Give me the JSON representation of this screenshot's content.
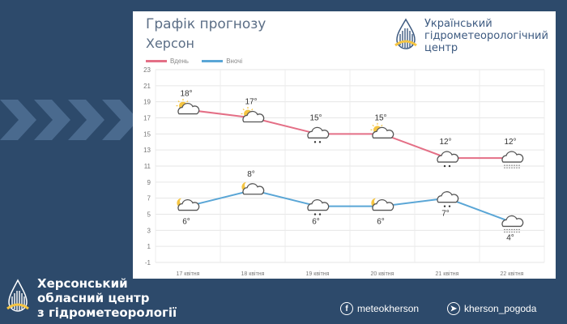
{
  "card": {
    "title": "Графік прогнозу",
    "subtitle": "Херсон",
    "org_lines": [
      "Український",
      "гідрометеорологічний",
      "центр"
    ]
  },
  "footer": {
    "org_lines": [
      "Херсонський",
      "обласний центр",
      "з гідрометеорології"
    ],
    "facebook_handle": "meteokherson",
    "telegram_handle": "kherson_pogoda"
  },
  "colors": {
    "background": "#2d4a6b",
    "day_series": "#e46f86",
    "night_series": "#5aa6d6",
    "sun": "#f5c542",
    "cloud": "#555555"
  },
  "chart_data": {
    "type": "line",
    "categories": [
      "17 квітня",
      "18 квітня",
      "19 квітня",
      "20 квітня",
      "21 квітня",
      "22 квітня"
    ],
    "series": [
      {
        "name": "Вдень",
        "values": [
          18,
          17,
          15,
          15,
          12,
          12
        ],
        "labels": [
          "18°",
          "17°",
          "15°",
          "15°",
          "12°",
          "12°"
        ],
        "icons": [
          "sun-cloud",
          "sun-cloud",
          "cloud-rain",
          "sun-cloud",
          "cloud-rain",
          "cloud-fog"
        ]
      },
      {
        "name": "Вночі",
        "values": [
          6,
          8,
          6,
          6,
          7,
          4
        ],
        "labels": [
          "6°",
          "8°",
          "6°",
          "6°",
          "7°",
          "4°"
        ],
        "icons": [
          "moon-cloud",
          "moon-cloud",
          "cloud-rain",
          "moon-cloud",
          "cloud-rain",
          "cloud-fog"
        ]
      }
    ],
    "yticks": [
      23,
      21,
      19,
      17,
      15,
      13,
      11,
      9,
      7,
      5,
      3,
      1,
      -1
    ],
    "ylim": [
      -1,
      23
    ],
    "grid": true,
    "legend": "top-left"
  }
}
